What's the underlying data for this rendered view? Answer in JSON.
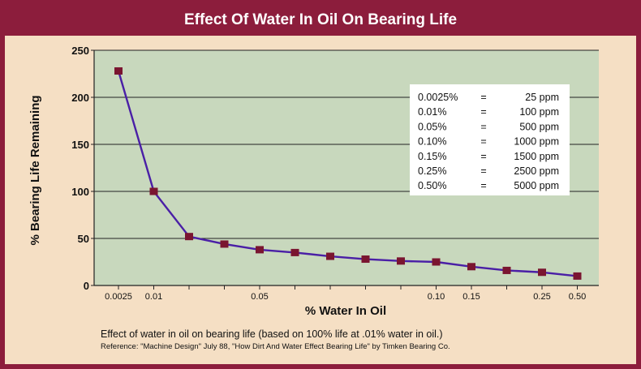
{
  "chart_data": {
    "type": "line",
    "title": "Effect Of Water In Oil On Bearing Life",
    "xlabel": "% Water In Oil",
    "ylabel": "% Bearing Life Remaining",
    "ylim": [
      0,
      250
    ],
    "yticks": [
      "0",
      "50",
      "100",
      "150",
      "200",
      "250"
    ],
    "xticks": [
      {
        "label": "0.0025",
        "i": 0
      },
      {
        "label": "0.01",
        "i": 1
      },
      {
        "label": "0.05",
        "i": 4
      },
      {
        "label": "0.10",
        "i": 9
      },
      {
        "label": "0.15",
        "i": 10
      },
      {
        "label": "0.25",
        "i": 12
      },
      {
        "label": "0.50",
        "i": 13
      }
    ],
    "grid": true,
    "values": [
      228,
      100,
      52,
      44,
      38,
      35,
      31,
      28,
      26,
      25,
      20,
      16,
      14,
      10
    ],
    "series_color": "#4a1fa6",
    "marker_color": "#7a1530",
    "conversion_table": [
      {
        "pct": "0.0025%",
        "eq": "=",
        "ppm": "25 ppm"
      },
      {
        "pct": "0.01%",
        "eq": "=",
        "ppm": "100 ppm"
      },
      {
        "pct": "0.05%",
        "eq": "=",
        "ppm": "500 ppm"
      },
      {
        "pct": "0.10%",
        "eq": "=",
        "ppm": "1000 ppm"
      },
      {
        "pct": "0.15%",
        "eq": "=",
        "ppm": "1500 ppm"
      },
      {
        "pct": "0.25%",
        "eq": "=",
        "ppm": "2500 ppm"
      },
      {
        "pct": "0.50%",
        "eq": "=",
        "ppm": "5000 ppm"
      }
    ],
    "caption": "Effect of water in oil on bearing life (based on 100% life at .01%  water in oil.)",
    "reference": "Reference: \"Machine Design\" July 88, \"How Dirt And Water Effect Bearing Life\" by Timken Bearing Co."
  }
}
